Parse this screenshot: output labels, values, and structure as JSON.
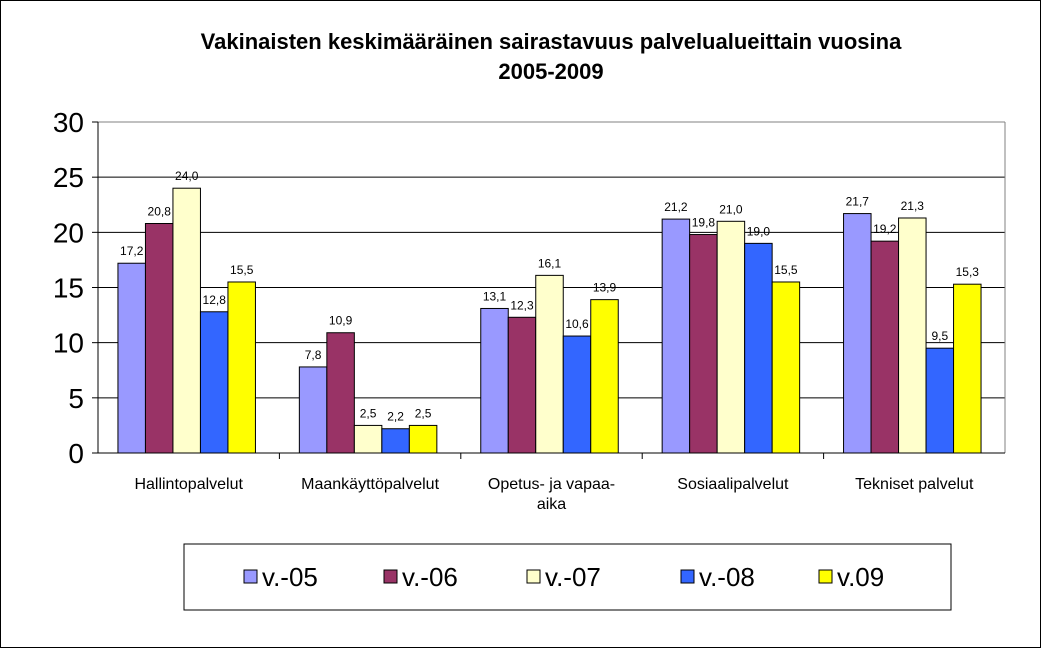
{
  "chart_data": {
    "type": "bar",
    "title": "Vakinaisten keskimääräinen sairastavuus palvelualueittain vuosina 2005-2009",
    "title_lines": [
      "Vakinaisten keskimääräinen sairastavuus palvelualueittain vuosina",
      "2005-2009"
    ],
    "categories": [
      "Hallintopalvelut",
      "Maankäyttöpalvelut",
      "Opetus- ja vapaa-aika",
      "Sosiaalipalvelut",
      "Tekniset palvelut"
    ],
    "category_lines": [
      [
        "Hallintopalvelut"
      ],
      [
        "Maankäyttöpalvelut"
      ],
      [
        "Opetus- ja vapaa-",
        "aika"
      ],
      [
        "Sosiaalipalvelut"
      ],
      [
        "Tekniset palvelut"
      ]
    ],
    "series": [
      {
        "name": "v.-05",
        "color": "#9999ff",
        "values": [
          17.2,
          7.8,
          13.1,
          21.2,
          21.7
        ],
        "labels": [
          "17,2",
          "7,8",
          "13,1",
          "21,2",
          "21,7"
        ]
      },
      {
        "name": "v.-06",
        "color": "#993366",
        "values": [
          20.8,
          10.9,
          12.3,
          19.8,
          19.2
        ],
        "labels": [
          "20,8",
          "10,9",
          "12,3",
          "19,8",
          "19,2"
        ]
      },
      {
        "name": "v.-07",
        "color": "#ffffcc",
        "values": [
          24.0,
          2.5,
          16.1,
          21.0,
          21.3
        ],
        "labels": [
          "24,0",
          "2,5",
          "16,1",
          "21,0",
          "21,3"
        ]
      },
      {
        "name": "v.-08",
        "color": "#3366ff",
        "values": [
          12.8,
          2.2,
          10.6,
          19.0,
          9.5
        ],
        "labels": [
          "12,8",
          "2,2",
          "10,6",
          "19,0",
          "9,5"
        ]
      },
      {
        "name": "v.09",
        "color": "#ffff00",
        "values": [
          15.5,
          2.5,
          13.9,
          15.5,
          15.3
        ],
        "labels": [
          "15,5",
          "2,5",
          "13,9",
          "15,5",
          "15,3"
        ]
      }
    ],
    "y_ticks": [
      "0",
      "5",
      "10",
      "15",
      "20",
      "25",
      "30"
    ],
    "ylim": [
      0,
      30
    ],
    "xlabel": "",
    "ylabel": "",
    "grid": true,
    "legend_position": "bottom"
  }
}
